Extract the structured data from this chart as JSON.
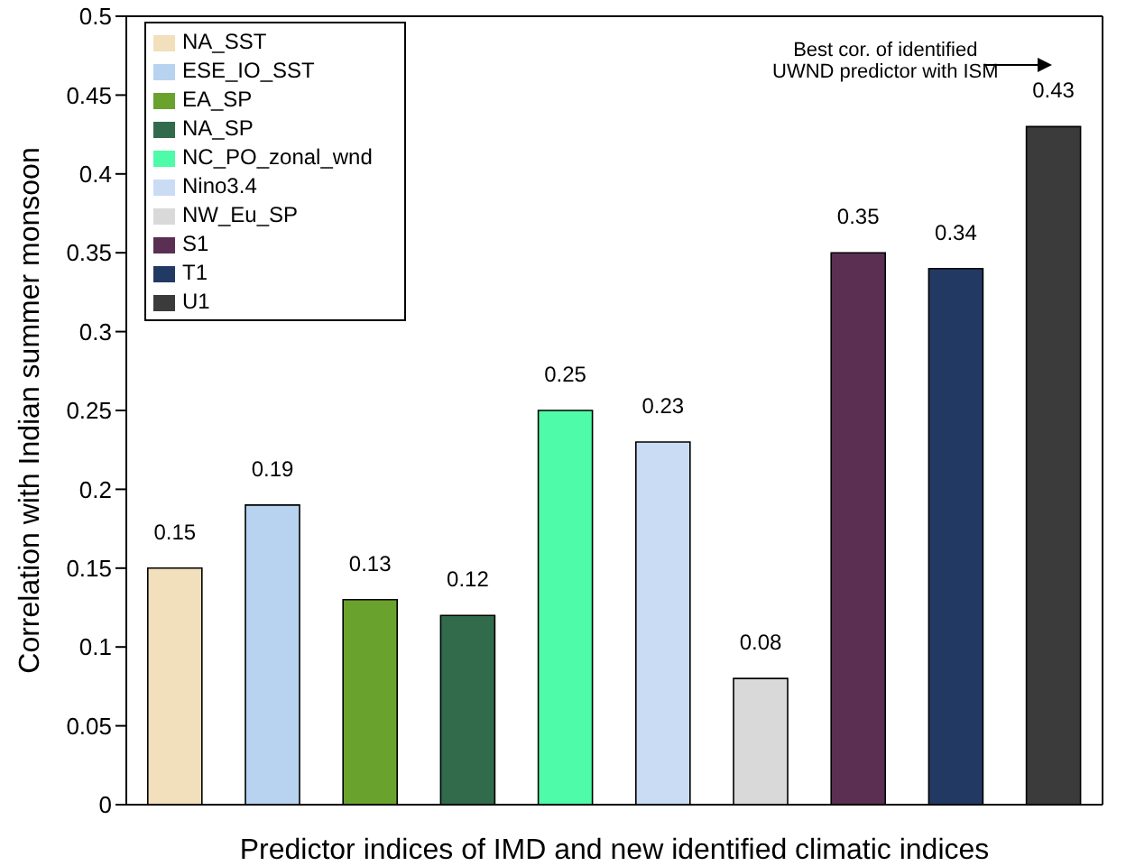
{
  "chart_data": {
    "type": "bar",
    "xlabel": "Predictor indices of IMD and new identified climatic indices",
    "ylabel": "Correlation with Indian summer monsoon",
    "categories": [
      null,
      null,
      null,
      null,
      null,
      null,
      null,
      null,
      null,
      null
    ],
    "series": [
      {
        "name": "NA_SST",
        "color": "#f2dfbb",
        "values": [
          0.15,
          null,
          null,
          null,
          null,
          null,
          null,
          null,
          null,
          null
        ]
      },
      {
        "name": "ESE_IO_SST",
        "color": "#b8d3f0",
        "values": [
          null,
          0.19,
          null,
          null,
          null,
          null,
          null,
          null,
          null,
          null
        ]
      },
      {
        "name": "EA_SP",
        "color": "#6aa22e",
        "values": [
          null,
          null,
          0.13,
          null,
          null,
          null,
          null,
          null,
          null,
          null
        ]
      },
      {
        "name": "NA_SP",
        "color": "#316b4c",
        "values": [
          null,
          null,
          null,
          0.12,
          null,
          null,
          null,
          null,
          null,
          null
        ]
      },
      {
        "name": "NC_PO_zonal_wnd",
        "color": "#4dfba9",
        "values": [
          null,
          null,
          null,
          null,
          0.25,
          null,
          null,
          null,
          null,
          null
        ]
      },
      {
        "name": "Nino3.4",
        "color": "#c9dcf4",
        "values": [
          null,
          null,
          null,
          null,
          null,
          0.23,
          null,
          null,
          null,
          null
        ]
      },
      {
        "name": "NW_Eu_SP",
        "color": "#d9d9d9",
        "values": [
          null,
          null,
          null,
          null,
          null,
          null,
          0.08,
          null,
          null,
          null
        ]
      },
      {
        "name": "S1",
        "color": "#5a2f52",
        "values": [
          null,
          null,
          null,
          null,
          null,
          null,
          null,
          0.35,
          null,
          null
        ]
      },
      {
        "name": "T1",
        "color": "#223a63",
        "values": [
          null,
          null,
          null,
          null,
          null,
          null,
          null,
          null,
          0.34,
          null
        ]
      },
      {
        "name": "U1",
        "color": "#3b3b3b",
        "values": [
          null,
          null,
          null,
          null,
          null,
          null,
          null,
          null,
          null,
          0.43
        ]
      }
    ],
    "stacked": true,
    "ylim": [
      0,
      0.5
    ],
    "yticks": [
      0,
      0.05,
      0.1,
      0.15,
      0.2,
      0.25,
      0.3,
      0.35,
      0.4,
      0.45,
      0.5
    ],
    "data_labels": true,
    "legend": "top left",
    "tick_labels": "y",
    "annotations": [
      "Best cor. of identified\nUWND predictor with ISM"
    ]
  }
}
